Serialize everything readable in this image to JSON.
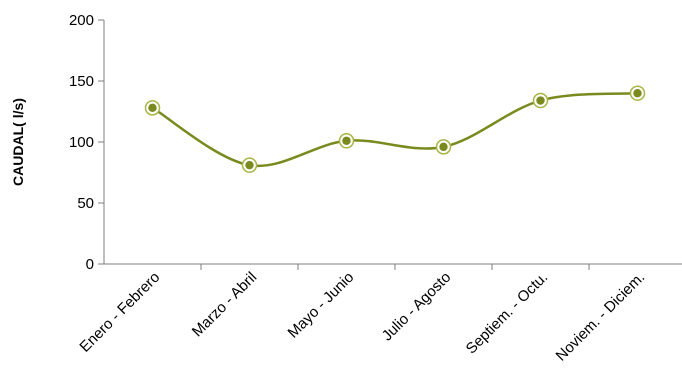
{
  "chart_data": {
    "type": "line",
    "title": "",
    "xlabel": "",
    "ylabel": "CAUDAL(  l/s)",
    "categories": [
      "Enero - Febrero",
      "Marzo - Abril",
      "Mayo - Junio",
      "Julio - Agosto",
      "Septiem. - Octu.",
      "Noviem. - Diciem."
    ],
    "series": [
      {
        "values": [
          128,
          81,
          101,
          96,
          134,
          140
        ],
        "color": "#7a8a1e"
      }
    ],
    "ylim": [
      0,
      200
    ],
    "yticks": [
      "0",
      "50",
      "100",
      "150",
      "200"
    ],
    "ytick_values": [
      0,
      50,
      100,
      150,
      200
    ],
    "grid": false,
    "smooth": true,
    "legend": "none"
  }
}
